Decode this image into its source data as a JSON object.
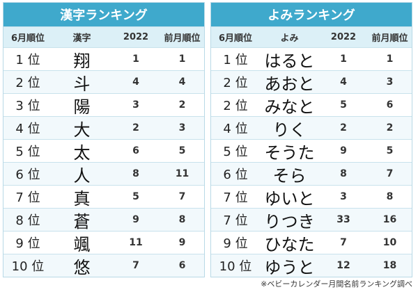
{
  "tables": [
    {
      "title": "漢字ランキング",
      "headers": [
        "6月順位",
        "漢字",
        "2022",
        "前月順位"
      ],
      "rows": [
        [
          "1 位",
          "翔",
          1,
          1
        ],
        [
          "2 位",
          "斗",
          4,
          4
        ],
        [
          "3 位",
          "陽",
          3,
          2
        ],
        [
          "4 位",
          "大",
          2,
          3
        ],
        [
          "5 位",
          "太",
          6,
          5
        ],
        [
          "6 位",
          "人",
          8,
          11
        ],
        [
          "7 位",
          "真",
          5,
          7
        ],
        [
          "8 位",
          "蒼",
          9,
          8
        ],
        [
          "9 位",
          "颯",
          11,
          9
        ],
        [
          "10 位",
          "悠",
          7,
          6
        ]
      ]
    },
    {
      "title": "よみランキング",
      "headers": [
        "6月順位",
        "よみ",
        "2022",
        "前月順位"
      ],
      "rows": [
        [
          "1 位",
          "はると",
          1,
          1
        ],
        [
          "2 位",
          "あおと",
          4,
          3
        ],
        [
          "2 位",
          "みなと",
          5,
          6
        ],
        [
          "4 位",
          "りく",
          2,
          2
        ],
        [
          "5 位",
          "そうた",
          9,
          5
        ],
        [
          "6 位",
          "そら",
          8,
          7
        ],
        [
          "7 位",
          "ゆいと",
          3,
          8
        ],
        [
          "7 位",
          "りつき",
          33,
          16
        ],
        [
          "9 位",
          "ひなた",
          7,
          10
        ],
        [
          "10 位",
          "ゆうと",
          12,
          18
        ]
      ]
    }
  ],
  "footer": "※ベビーカレンダー月間名前ランキング調べ"
}
